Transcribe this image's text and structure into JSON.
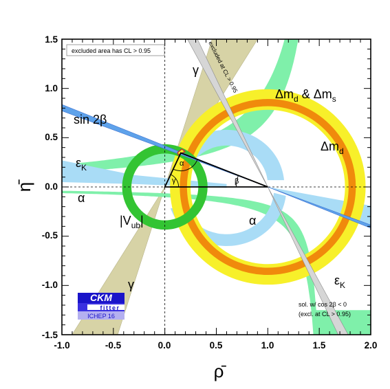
{
  "chart_data": {
    "type": "contour",
    "title": "",
    "xlabel": "ρ̄",
    "ylabel": "η̄",
    "xlim": [
      -1.0,
      2.0
    ],
    "ylim": [
      -1.5,
      1.5
    ],
    "x_ticks": [
      "-1.0",
      "-0.5",
      "0.0",
      "0.5",
      "1.0",
      "1.5",
      "2.0"
    ],
    "y_ticks": [
      "-1.5",
      "-1.0",
      "-0.5",
      "0.0",
      "0.5",
      "1.0",
      "1.5"
    ],
    "grid": false,
    "unitarity_triangle": {
      "apex": {
        "rho": 0.155,
        "eta": 0.345
      },
      "vertices": [
        [
          0,
          0
        ],
        [
          1,
          0
        ],
        [
          0.155,
          0.345
        ]
      ],
      "angles": [
        "α",
        "β",
        "γ"
      ]
    },
    "constraints": [
      {
        "name": "|Vub|",
        "label": "|V",
        "sub": "ub",
        "tail": "|",
        "shape": "ring",
        "center": [
          0,
          0
        ],
        "radius": 0.37,
        "width": 0.09,
        "color": "#33c433"
      },
      {
        "name": "Δmd",
        "label": "Δm",
        "sub": "d",
        "shape": "ring",
        "center": [
          1,
          0
        ],
        "radius": 0.85,
        "width": 0.2,
        "color": "#f7f02a"
      },
      {
        "name": "Δmd & Δms",
        "label": "Δm",
        "sub": "d",
        "mid": " & Δm",
        "sub2": "s",
        "shape": "ring",
        "center": [
          1,
          0
        ],
        "radius": 0.82,
        "width": 0.07,
        "color": "#f08a0c"
      },
      {
        "name": "sin 2β",
        "label": "sin 2β",
        "shape": "wedge",
        "origin": [
          1,
          0
        ],
        "angle_deg": 21.9,
        "width_deg": 1.6,
        "color": "#5ea2ea"
      },
      {
        "name": "εK",
        "label": "ε",
        "sub": "K",
        "shape": "hyperbola",
        "color": "#7ff0aa"
      },
      {
        "name": "α",
        "label": "α",
        "shape": "arc-band",
        "color": "#a9dcf6"
      },
      {
        "name": "γ",
        "label": "γ",
        "shape": "wedge",
        "origin": [
          0,
          0
        ],
        "angle_deg": 66,
        "width_deg": 14,
        "color": "#d7d3a6"
      },
      {
        "name": "sol. w/ cos 2β < 0",
        "shape": "wedge",
        "origin": [
          1,
          0
        ],
        "angle_deg": 116,
        "width_deg": 3,
        "color": "#d6d6d6"
      }
    ],
    "annotations": {
      "excluded_box": "excluded area has CL > 0.95",
      "excluded_diag": "excluded at CL > 0.95",
      "sol_line1": "sol. w/ cos 2β < 0",
      "sol_line2": "(excl. at CL > 0.95)"
    },
    "logo": {
      "title": "CKM",
      "sub": "fitter",
      "conf": "ICHEP 16"
    }
  }
}
